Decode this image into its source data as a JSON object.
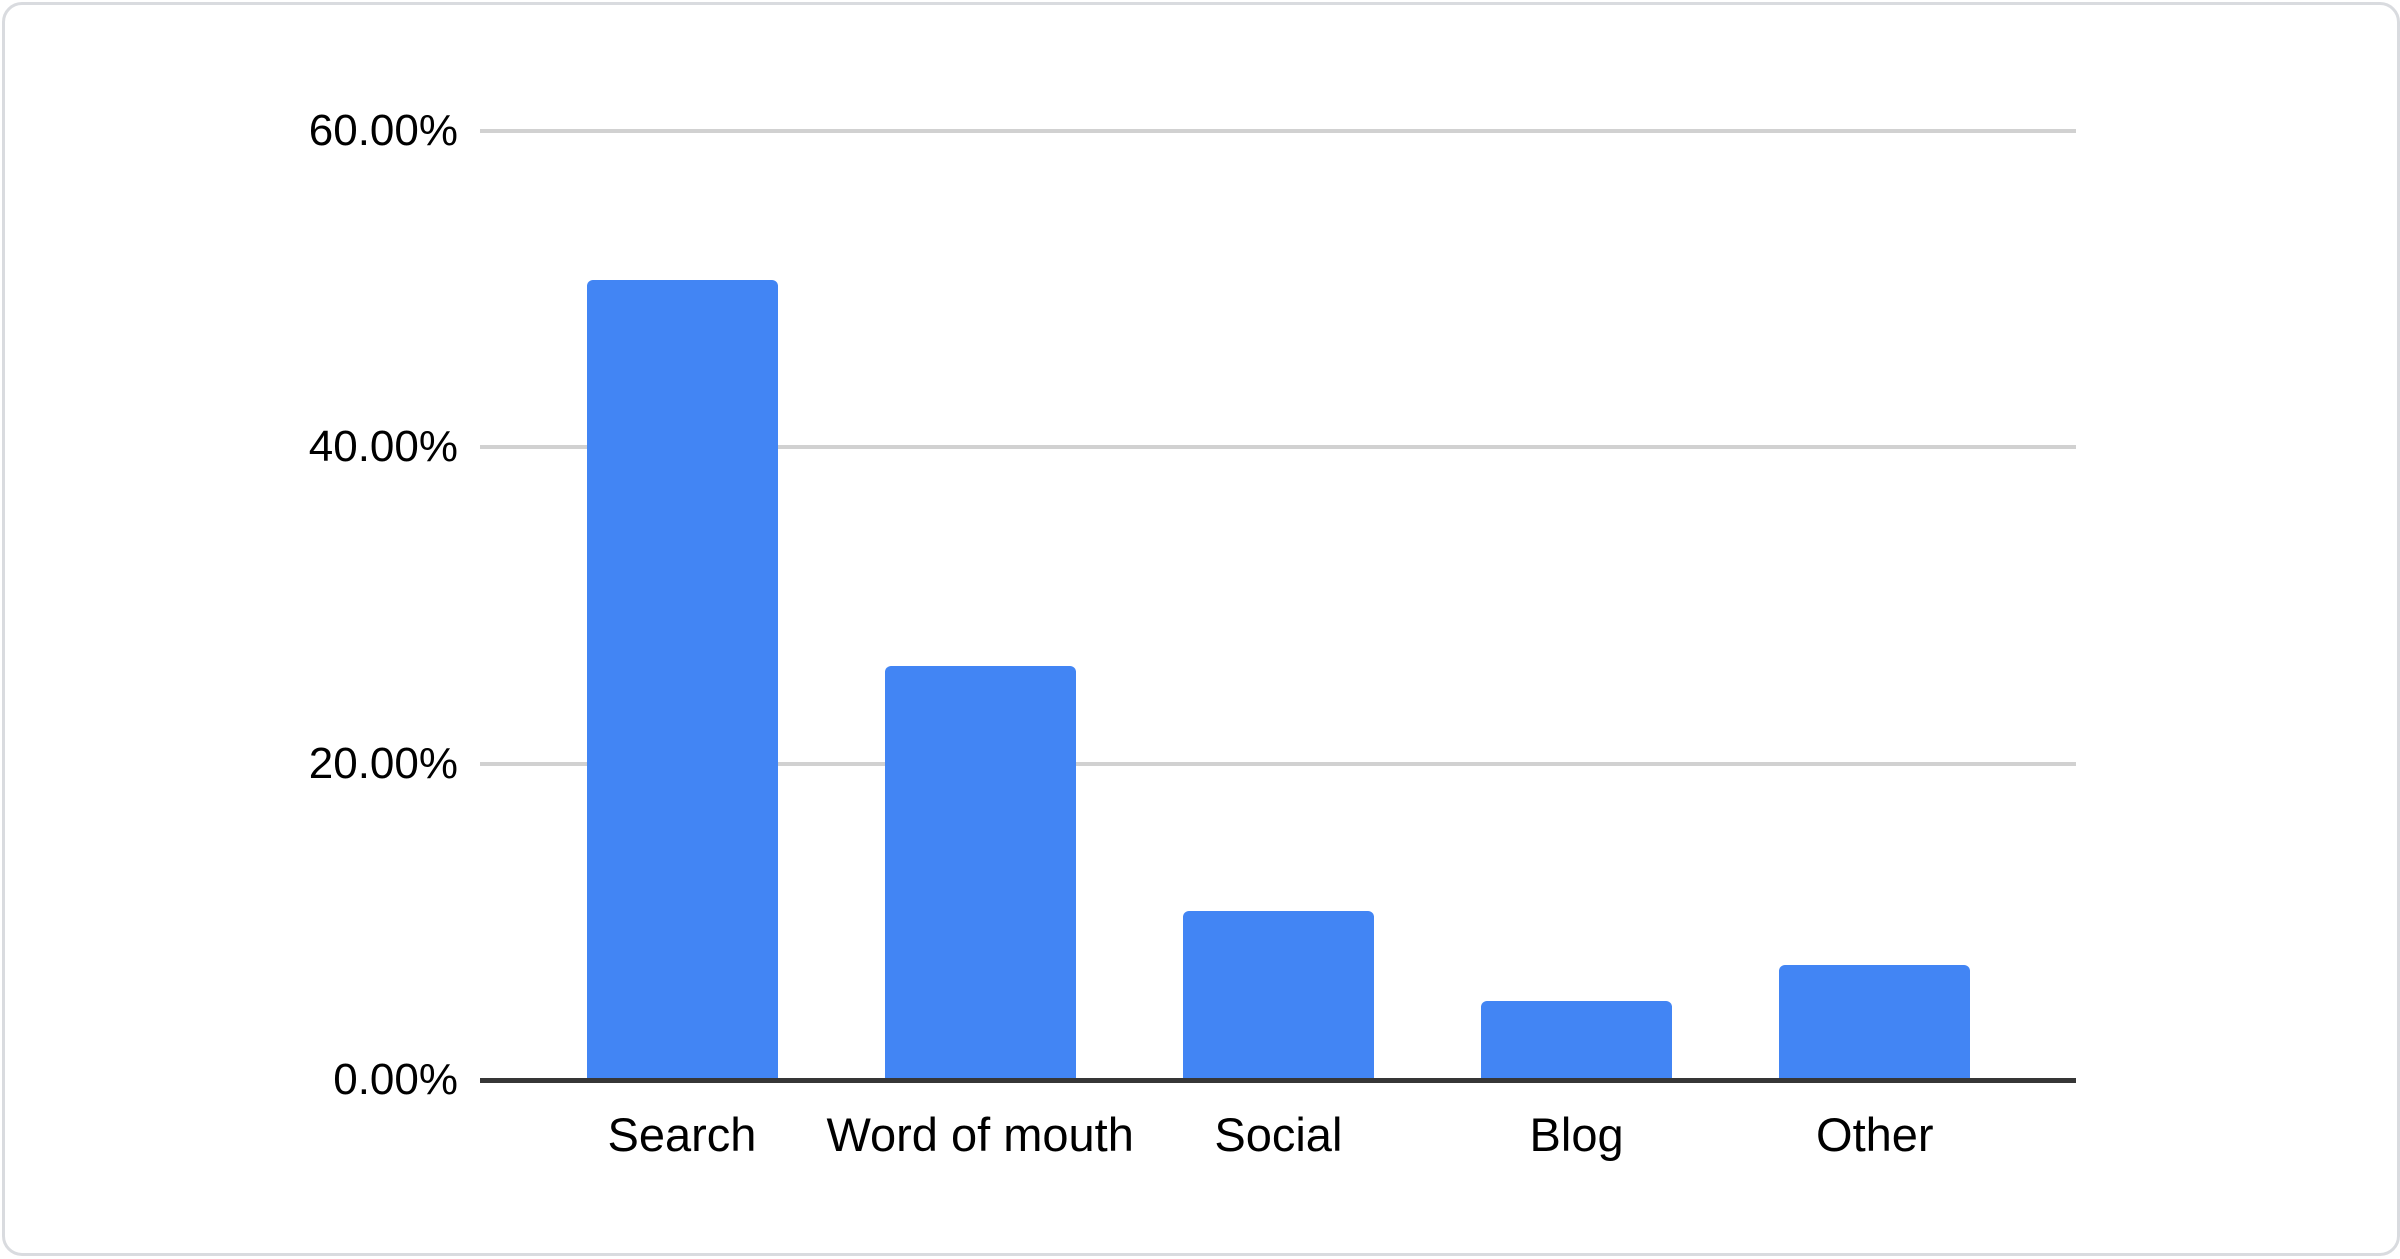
{
  "chart_data": {
    "type": "bar",
    "categories": [
      "Search",
      "Word of mouth",
      "Social",
      "Blog",
      "Other"
    ],
    "values": [
      50.6,
      26.2,
      10.7,
      5.0,
      7.3
    ],
    "value_unit": "%",
    "yticks": [
      {
        "value": 0,
        "label": "0.00%"
      },
      {
        "value": 20,
        "label": "20.00%"
      },
      {
        "value": 40,
        "label": "40.00%"
      },
      {
        "value": 60,
        "label": "60.00%"
      }
    ],
    "ylim": [
      0,
      60
    ],
    "grid": "horizontal",
    "legend": "none",
    "xlabel": "",
    "ylabel": "",
    "bar_color": "#4285f4",
    "gridline_color": "#d1d1d1",
    "axis_color": "#363636",
    "text_color": "#000000",
    "card_background": "#ffffff",
    "card_border_color": "#d9dbdf"
  }
}
